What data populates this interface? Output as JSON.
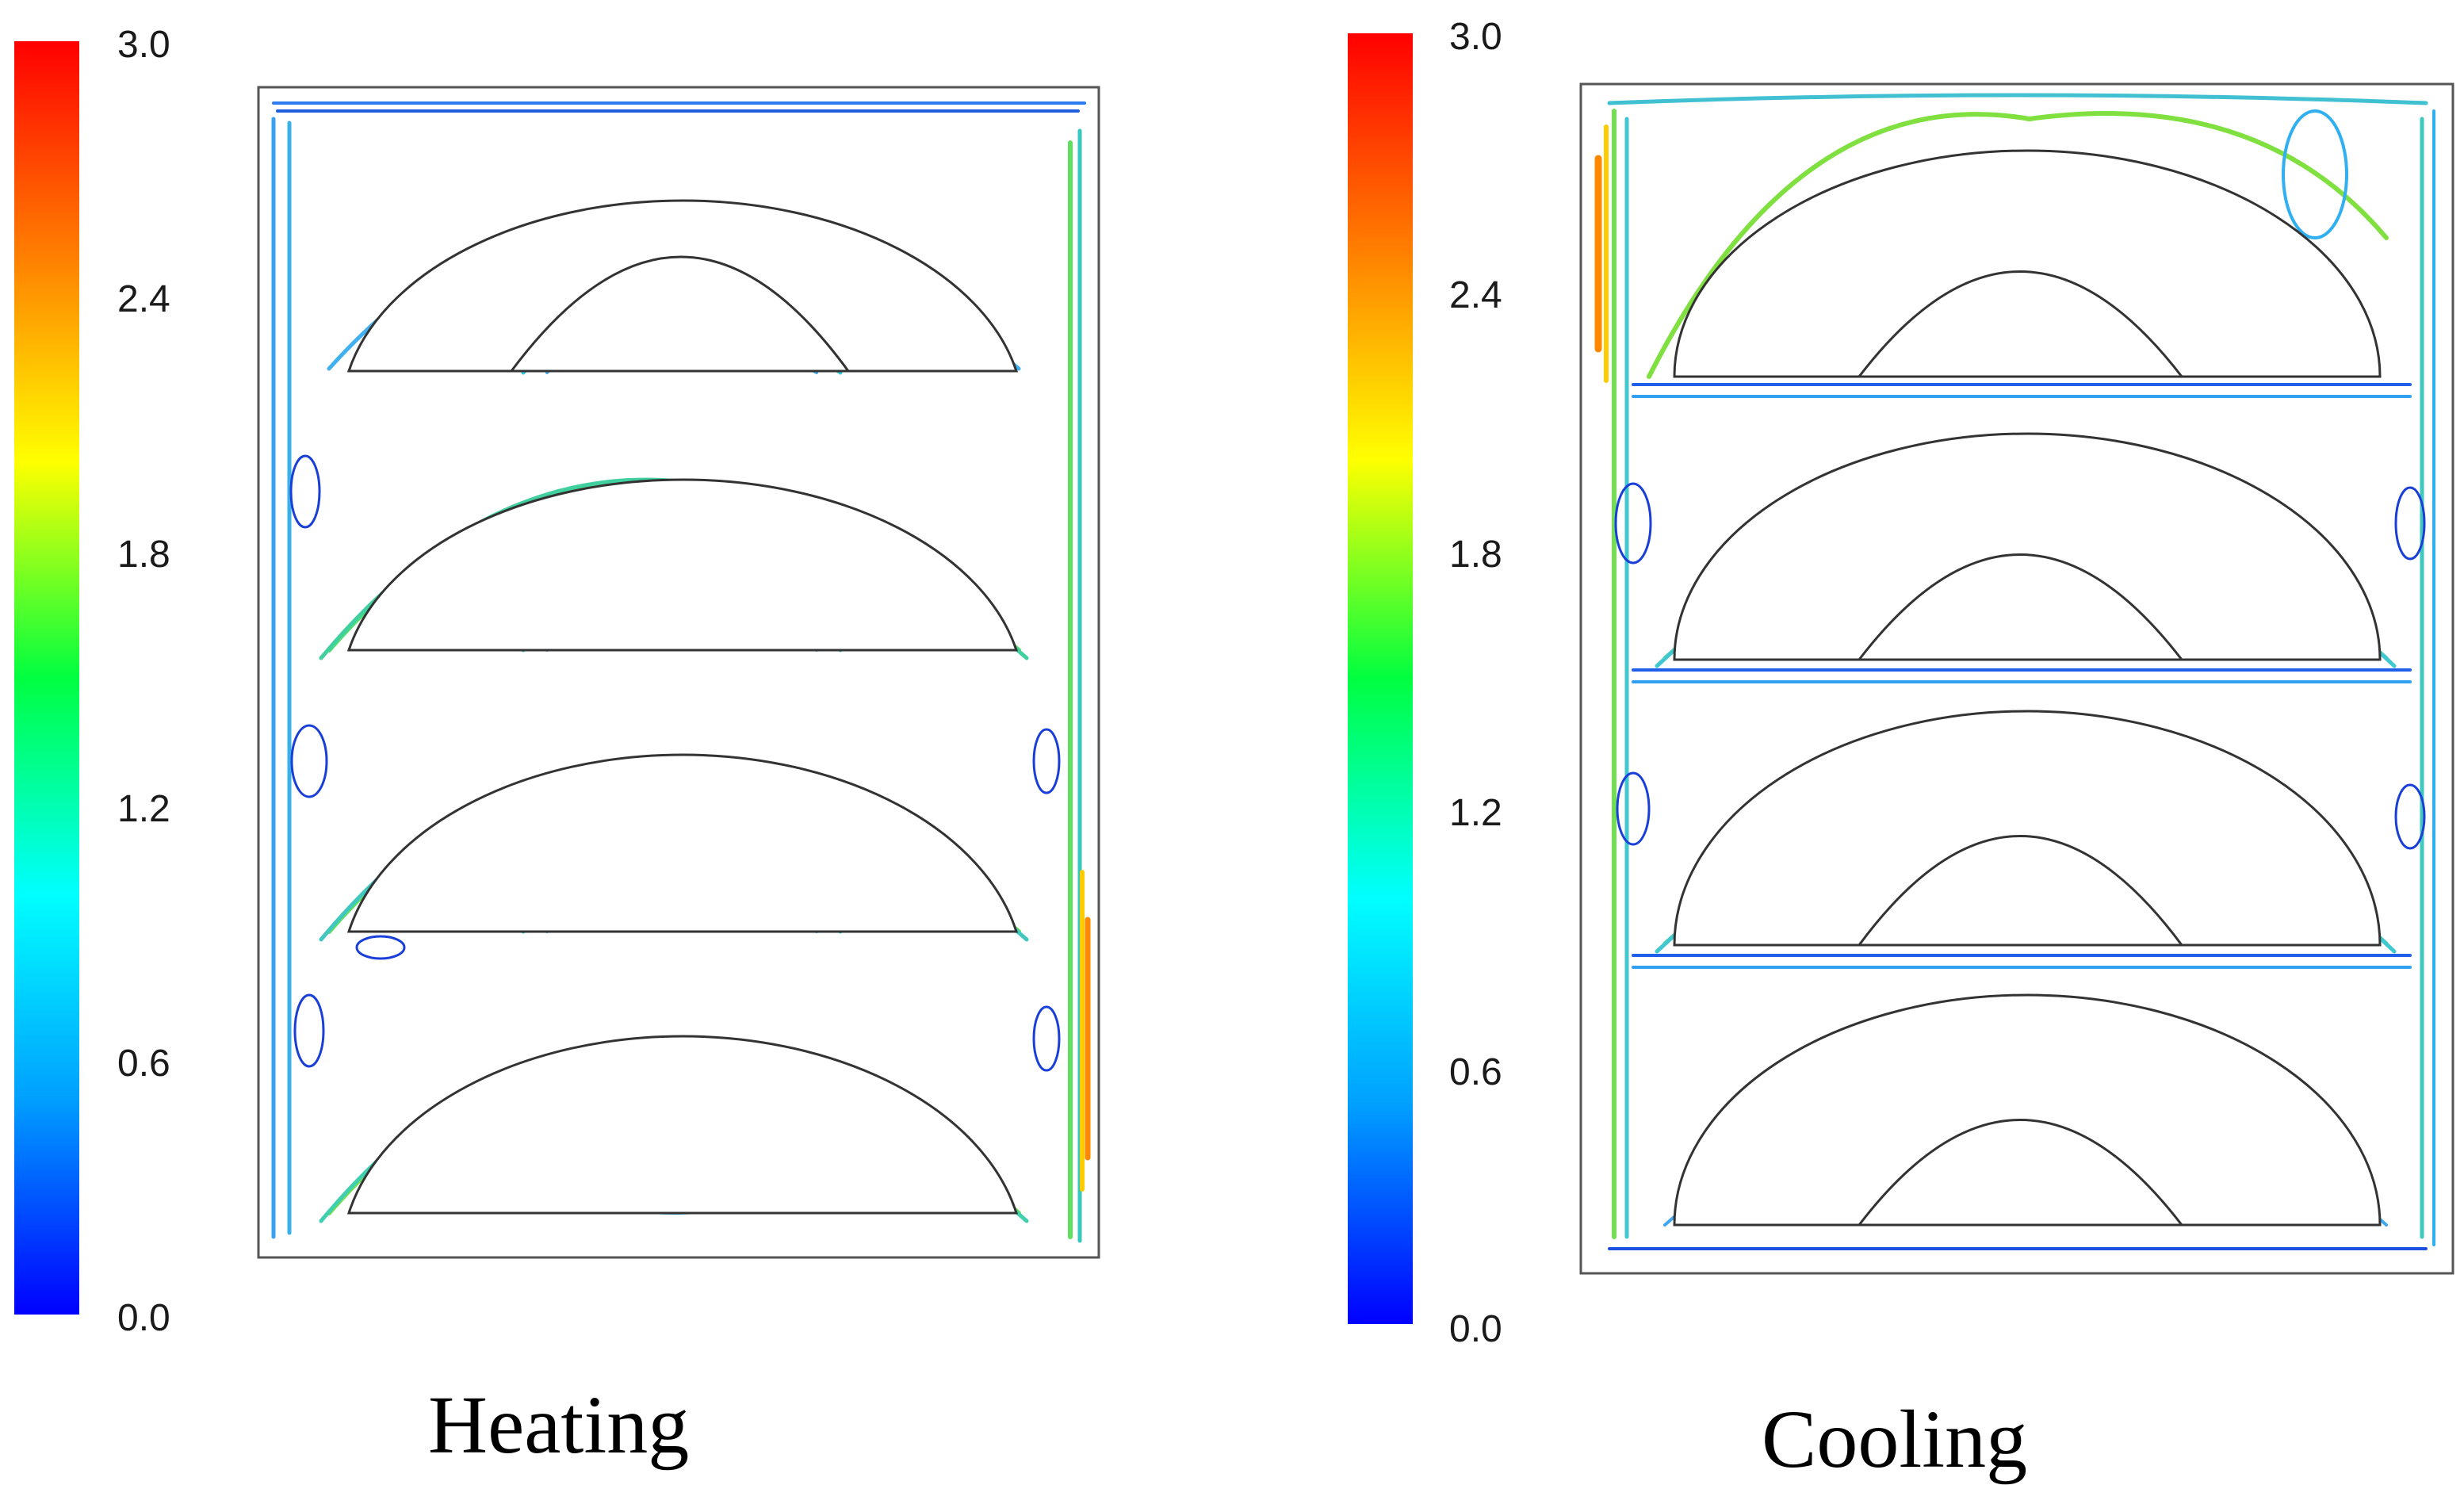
{
  "figure": {
    "panels": [
      {
        "id": "heating",
        "caption": "Heating",
        "colorbar": {
          "min": 0.0,
          "max": 3.0,
          "ticks": [
            "0.0",
            "0.6",
            "1.2",
            "1.8",
            "2.4",
            "3.0"
          ],
          "colormap": [
            "#0000ff",
            "#00a0ff",
            "#00ffff",
            "#00ff40",
            "#ffff00",
            "#ff8000",
            "#ff0000"
          ]
        },
        "obstacle_rows": 4,
        "peak_speed": 2.6
      },
      {
        "id": "cooling",
        "caption": "Cooling",
        "colorbar": {
          "min": 0.0,
          "max": 3.0,
          "ticks": [
            "0.0",
            "0.6",
            "1.2",
            "1.8",
            "2.4",
            "3.0"
          ],
          "colormap": [
            "#0000ff",
            "#00a0ff",
            "#00ffff",
            "#00ff40",
            "#ffff00",
            "#ff8000",
            "#ff0000"
          ]
        },
        "obstacle_rows": 4,
        "peak_speed": 2.8
      }
    ]
  }
}
